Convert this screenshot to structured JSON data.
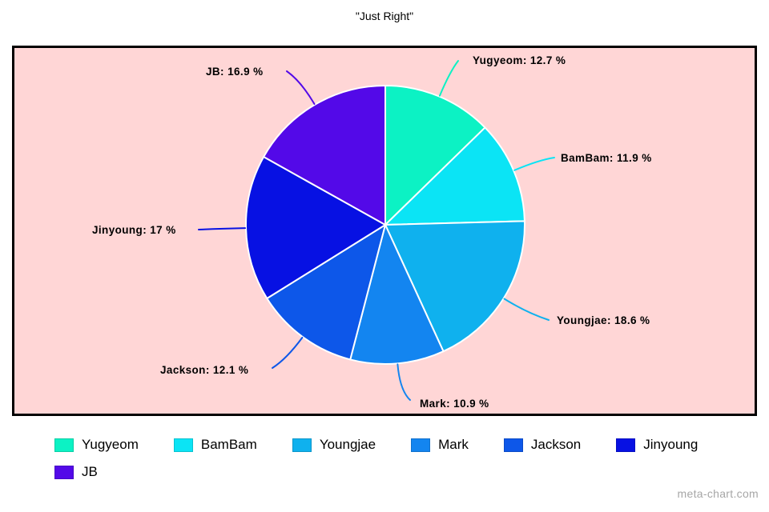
{
  "title": "\"Just Right\"",
  "watermark": "meta-chart.com",
  "chart_data": {
    "type": "pie",
    "title": "\"Just Right\"",
    "categories": [
      "Yugyeom",
      "BamBam",
      "Youngjae",
      "Mark",
      "Jackson",
      "Jinyoung",
      "JB"
    ],
    "values": [
      12.7,
      11.9,
      18.6,
      10.9,
      12.1,
      17,
      16.9
    ],
    "labels": [
      "Yugyeom: 12.7 %",
      "BamBam: 11.9 %",
      "Youngjae: 18.6 %",
      "Mark: 10.9 %",
      "Jackson: 12.1 %",
      "Jinyoung: 17 %",
      "JB: 16.9 %"
    ],
    "colors": [
      "#0cf2c4",
      "#0be4f5",
      "#0fb1ee",
      "#1385f0",
      "#0d57e9",
      "#0711e3",
      "#5309e8"
    ],
    "background": "#ffd6d6",
    "slice_border_color": "#ffffff",
    "start_position": "top",
    "direction": "clockwise",
    "legend_position": "bottom",
    "legend": [
      "Yugyeom",
      "BamBam",
      "Youngjae",
      "Mark",
      "Jackson",
      "Jinyoung",
      "JB"
    ]
  }
}
